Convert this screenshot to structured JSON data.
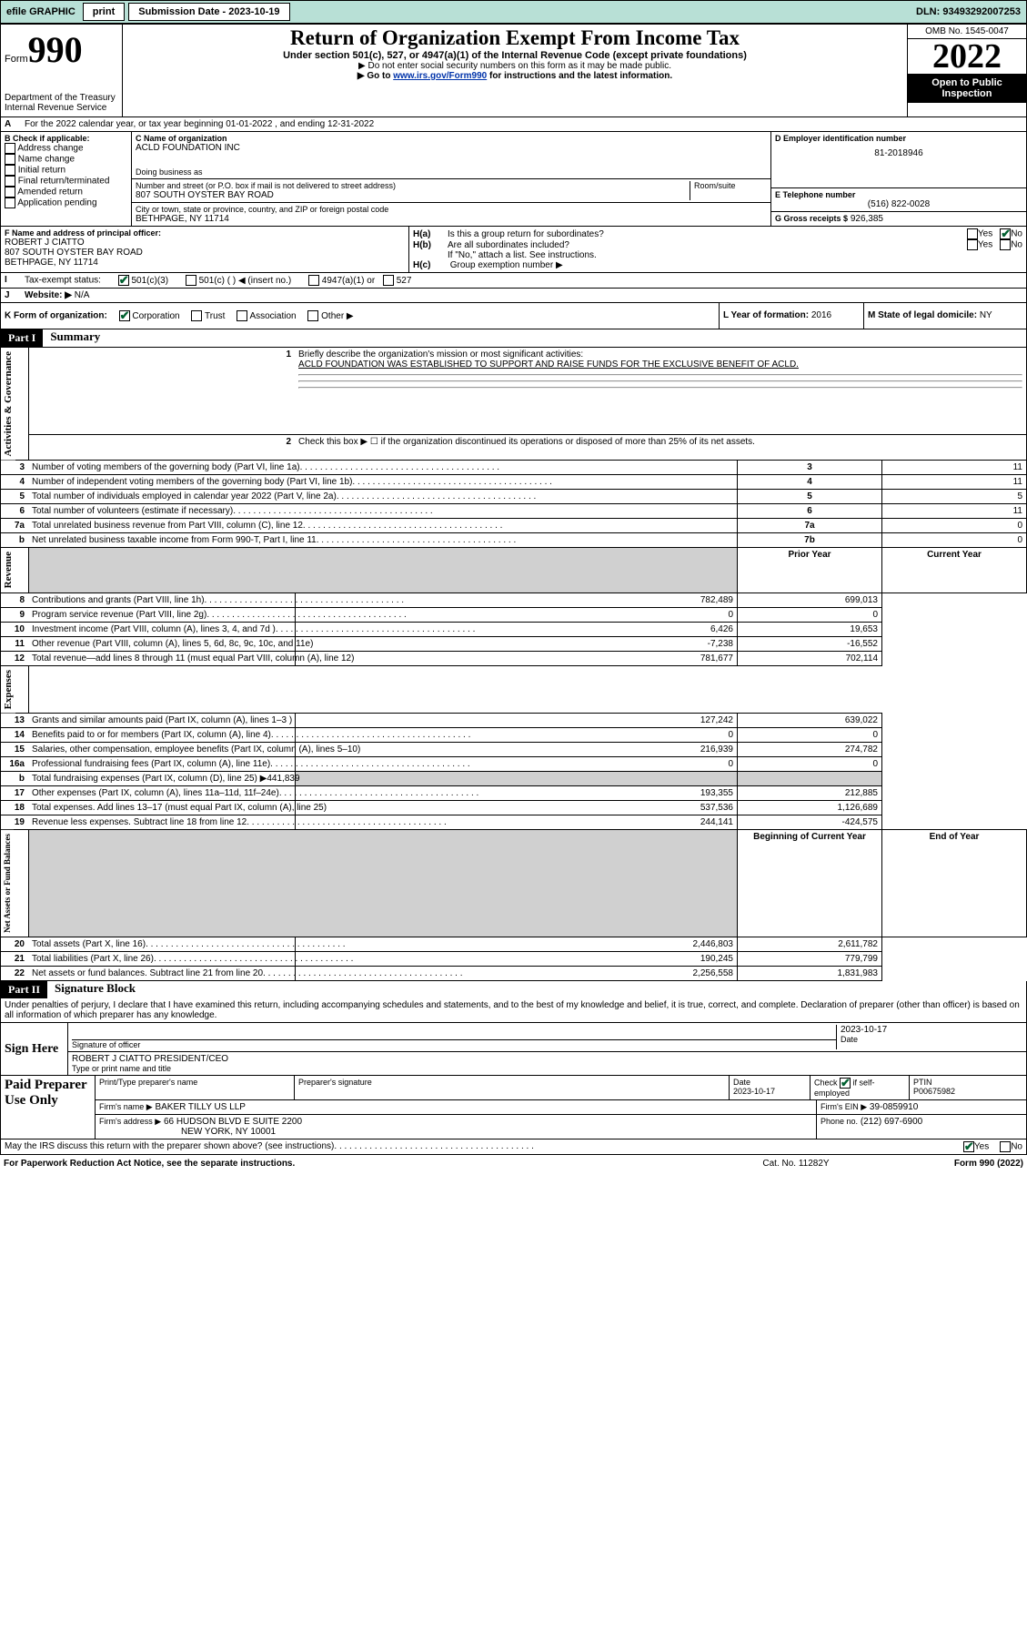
{
  "topbar": {
    "efile": "efile GRAPHIC",
    "print": "print",
    "sub_label": "Submission Date - 2023-10-19",
    "dln": "DLN: 93493292007253"
  },
  "header": {
    "form_label": "Form",
    "form_number": "990",
    "dept": "Department of the Treasury",
    "irs": "Internal Revenue Service",
    "title": "Return of Organization Exempt From Income Tax",
    "sub1": "Under section 501(c), 527, or 4947(a)(1) of the Internal Revenue Code (except private foundations)",
    "sub2": "▶ Do not enter social security numbers on this form as it may be made public.",
    "sub3_pre": "▶ Go to ",
    "sub3_link": "www.irs.gov/Form990",
    "sub3_post": " for instructions and the latest information.",
    "omb": "OMB No. 1545-0047",
    "year": "2022",
    "open": "Open to Public Inspection"
  },
  "sectionA": {
    "line": "For the 2022 calendar year, or tax year beginning 01-01-2022    , and ending 12-31-2022",
    "label": "A"
  },
  "sectionB": {
    "label": "B Check if applicable:",
    "items": [
      "Address change",
      "Name change",
      "Initial return",
      "Final return/terminated",
      "Amended return",
      "Application pending"
    ]
  },
  "sectionC": {
    "label_name": "C Name of organization",
    "name": "ACLD FOUNDATION INC",
    "dba_label": "Doing business as",
    "street_label": "Number and street (or P.O. box if mail is not delivered to street address)",
    "room_label": "Room/suite",
    "street": "807 SOUTH OYSTER BAY ROAD",
    "city_label": "City or town, state or province, country, and ZIP or foreign postal code",
    "city": "BETHPAGE, NY  11714"
  },
  "sectionD": {
    "label": "D Employer identification number",
    "ein": "81-2018946"
  },
  "sectionE": {
    "label": "E Telephone number",
    "phone": "(516) 822-0028"
  },
  "sectionG": {
    "label": "G Gross receipts $",
    "amount": "926,385"
  },
  "sectionF": {
    "label": "F Name and address of principal officer:",
    "name": "ROBERT J CIATTO",
    "street": "807 SOUTH OYSTER BAY ROAD",
    "city": "BETHPAGE, NY  11714"
  },
  "sectionH": {
    "ha": "Is this a group return for subordinates?",
    "hb": "Are all subordinates included?",
    "hb_note": "If \"No,\" attach a list. See instructions.",
    "hc": "Group exemption number ▶",
    "ha_label": "H(a)",
    "hb_label": "H(b)",
    "hc_label": "H(c)",
    "yes": "Yes",
    "no": "No"
  },
  "sectionI": {
    "label": "Tax-exempt status:",
    "i501c3": "501(c)(3)",
    "i501c": "501(c) (  ) ◀ (insert no.)",
    "i4947": "4947(a)(1) or",
    "i527": "527",
    "letter": "I"
  },
  "sectionJ": {
    "label": "Website: ▶",
    "value": "N/A",
    "letter": "J"
  },
  "sectionK": {
    "label": "K Form of organization:",
    "corp": "Corporation",
    "trust": "Trust",
    "assoc": "Association",
    "other": "Other ▶"
  },
  "sectionL": {
    "label": "L Year of formation:",
    "value": "2016"
  },
  "sectionM": {
    "label": "M State of legal domicile:",
    "value": "NY"
  },
  "part1": {
    "tag": "Part I",
    "title": "Summary",
    "line1_label": "Briefly describe the organization's mission or most significant activities:",
    "line1_text": "ACLD FOUNDATION WAS ESTABLISHED TO SUPPORT AND RAISE FUNDS FOR THE EXCLUSIVE BENEFIT OF ACLD.",
    "line2": "Check this box ▶ ☐  if the organization discontinued its operations or disposed of more than 25% of its net assets.",
    "prior_year": "Prior Year",
    "current_year": "Current Year",
    "begin_year": "Beginning of Current Year",
    "end_year": "End of Year",
    "rows_gov": [
      {
        "n": "3",
        "d": "Number of voting members of the governing body (Part VI, line 1a)",
        "box": "3",
        "v": "11"
      },
      {
        "n": "4",
        "d": "Number of independent voting members of the governing body (Part VI, line 1b)",
        "box": "4",
        "v": "11"
      },
      {
        "n": "5",
        "d": "Total number of individuals employed in calendar year 2022 (Part V, line 2a)",
        "box": "5",
        "v": "5"
      },
      {
        "n": "6",
        "d": "Total number of volunteers (estimate if necessary)",
        "box": "6",
        "v": "11"
      },
      {
        "n": "7a",
        "d": "Total unrelated business revenue from Part VIII, column (C), line 12",
        "box": "7a",
        "v": "0"
      },
      {
        "n": "b",
        "d": "Net unrelated business taxable income from Form 990-T, Part I, line 11",
        "box": "7b",
        "v": "0"
      }
    ],
    "rows_rev": [
      {
        "n": "8",
        "d": "Contributions and grants (Part VIII, line 1h)",
        "py": "782,489",
        "cy": "699,013"
      },
      {
        "n": "9",
        "d": "Program service revenue (Part VIII, line 2g)",
        "py": "0",
        "cy": "0"
      },
      {
        "n": "10",
        "d": "Investment income (Part VIII, column (A), lines 3, 4, and 7d )",
        "py": "6,426",
        "cy": "19,653"
      },
      {
        "n": "11",
        "d": "Other revenue (Part VIII, column (A), lines 5, 6d, 8c, 9c, 10c, and 11e)",
        "py": "-7,238",
        "cy": "-16,552"
      },
      {
        "n": "12",
        "d": "Total revenue—add lines 8 through 11 (must equal Part VIII, column (A), line 12)",
        "py": "781,677",
        "cy": "702,114"
      }
    ],
    "rows_exp": [
      {
        "n": "13",
        "d": "Grants and similar amounts paid (Part IX, column (A), lines 1–3 )",
        "py": "127,242",
        "cy": "639,022"
      },
      {
        "n": "14",
        "d": "Benefits paid to or for members (Part IX, column (A), line 4)",
        "py": "0",
        "cy": "0"
      },
      {
        "n": "15",
        "d": "Salaries, other compensation, employee benefits (Part IX, column (A), lines 5–10)",
        "py": "216,939",
        "cy": "274,782"
      },
      {
        "n": "16a",
        "d": "Professional fundraising fees (Part IX, column (A), line 11e)",
        "py": "0",
        "cy": "0"
      },
      {
        "n": "b",
        "d": "Total fundraising expenses (Part IX, column (D), line 25) ▶441,839",
        "py": "",
        "cy": "",
        "shade": true
      },
      {
        "n": "17",
        "d": "Other expenses (Part IX, column (A), lines 11a–11d, 11f–24e)",
        "py": "193,355",
        "cy": "212,885"
      },
      {
        "n": "18",
        "d": "Total expenses. Add lines 13–17 (must equal Part IX, column (A), line 25)",
        "py": "537,536",
        "cy": "1,126,689"
      },
      {
        "n": "19",
        "d": "Revenue less expenses. Subtract line 18 from line 12",
        "py": "244,141",
        "cy": "-424,575"
      }
    ],
    "rows_net": [
      {
        "n": "20",
        "d": "Total assets (Part X, line 16)",
        "py": "2,446,803",
        "cy": "2,611,782"
      },
      {
        "n": "21",
        "d": "Total liabilities (Part X, line 26)",
        "py": "190,245",
        "cy": "779,799"
      },
      {
        "n": "22",
        "d": "Net assets or fund balances. Subtract line 21 from line 20",
        "py": "2,256,558",
        "cy": "1,831,983"
      }
    ],
    "vlabels": {
      "gov": "Activities & Governance",
      "rev": "Revenue",
      "exp": "Expenses",
      "net": "Net Assets or Fund Balances"
    }
  },
  "part2": {
    "tag": "Part II",
    "title": "Signature Block",
    "declaration": "Under penalties of perjury, I declare that I have examined this return, including accompanying schedules and statements, and to the best of my knowledge and belief, it is true, correct, and complete. Declaration of preparer (other than officer) is based on all information of which preparer has any knowledge.",
    "sign_here": "Sign Here",
    "sig_officer": "Signature of officer",
    "sig_date": "Date",
    "sig_date_val": "2023-10-17",
    "officer_name": "ROBERT J CIATTO  PRESIDENT/CEO",
    "type_name": "Type or print name and title",
    "paid": "Paid Preparer Use Only",
    "prep_name_label": "Print/Type preparer's name",
    "prep_sig_label": "Preparer's signature",
    "prep_date_label": "Date",
    "prep_date": "2023-10-17",
    "check_if": "Check ☑ if self-employed",
    "ptin_label": "PTIN",
    "ptin": "P00675982",
    "firm_name_label": "Firm's name    ▶",
    "firm_name": "BAKER TILLY US LLP",
    "firm_ein_label": "Firm's EIN ▶",
    "firm_ein": "39-0859910",
    "firm_addr_label": "Firm's address ▶",
    "firm_addr": "66 HUDSON BLVD E SUITE 2200",
    "firm_city": "NEW YORK, NY  10001",
    "firm_phone_label": "Phone no.",
    "firm_phone": "(212) 697-6900",
    "discuss": "May the IRS discuss this return with the preparer shown above? (see instructions)",
    "yes": "Yes",
    "no": "No"
  },
  "footer": {
    "left": "For Paperwork Reduction Act Notice, see the separate instructions.",
    "mid": "Cat. No. 11282Y",
    "right": "Form 990 (2022)"
  }
}
